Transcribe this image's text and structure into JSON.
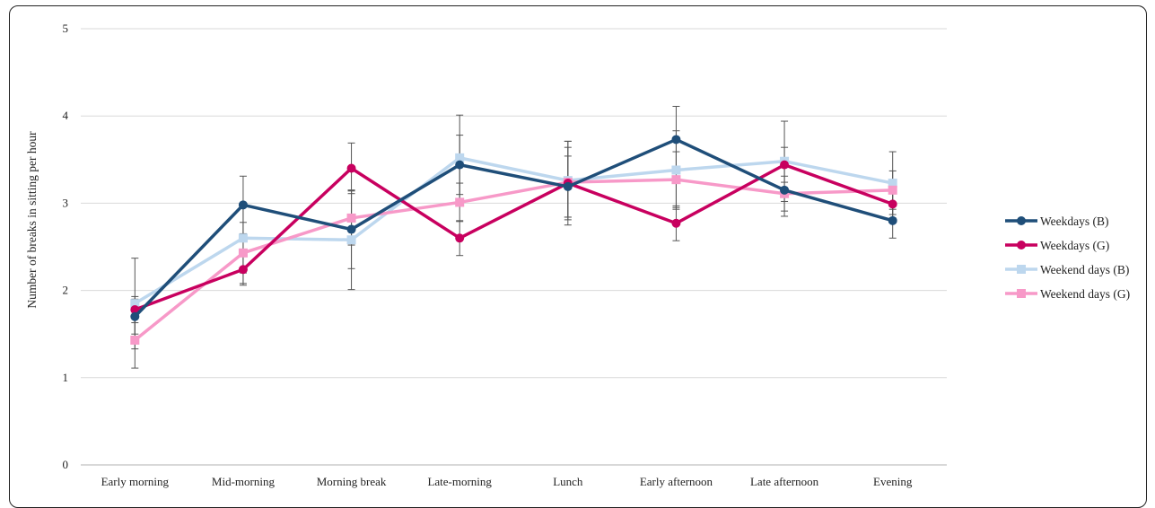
{
  "chart_data": {
    "type": "line",
    "title": "",
    "xlabel": "",
    "ylabel": "Number of breaks in sitting per hour",
    "ylim": [
      0,
      5
    ],
    "yticks": [
      "0",
      "1",
      "2",
      "3",
      "4",
      "5"
    ],
    "grid": true,
    "legend_position": "right",
    "categories": [
      "Early morning",
      "Mid-morning",
      "Morning break",
      "Late-morning",
      "Lunch",
      "Early afternoon",
      "Late afternoon",
      "Evening"
    ],
    "series": [
      {
        "name": "Weekdays (B)",
        "color": "#1f4e79",
        "marker": "circle",
        "values": [
          1.7,
          2.98,
          2.7,
          3.44,
          3.19,
          3.73,
          3.15,
          2.8
        ],
        "err": [
          0.2,
          0.33,
          0.45,
          0.34,
          0.35,
          0.38,
          0.3,
          0.2
        ]
      },
      {
        "name": "Weekdays (G)",
        "color": "#c8005f",
        "marker": "circle",
        "values": [
          1.78,
          2.24,
          3.4,
          2.6,
          3.23,
          2.77,
          3.44,
          2.99
        ],
        "err": [
          0.15,
          0.18,
          0.29,
          0.2,
          0.48,
          0.2,
          0.2,
          0.16
        ]
      },
      {
        "name": "Weekend days (B)",
        "color": "#bdd7ee",
        "marker": "square",
        "values": [
          1.85,
          2.6,
          2.58,
          3.52,
          3.26,
          3.38,
          3.48,
          3.23
        ],
        "err": [
          0.52,
          0.4,
          0.57,
          0.49,
          0.45,
          0.45,
          0.46,
          0.36
        ]
      },
      {
        "name": "Weekend days (G)",
        "color": "#f799c8",
        "marker": "square",
        "values": [
          1.43,
          2.43,
          2.83,
          3.01,
          3.24,
          3.27,
          3.11,
          3.15
        ],
        "err": [
          0.32,
          0.35,
          0.31,
          0.22,
          0.4,
          0.32,
          0.2,
          0.22
        ]
      }
    ]
  }
}
